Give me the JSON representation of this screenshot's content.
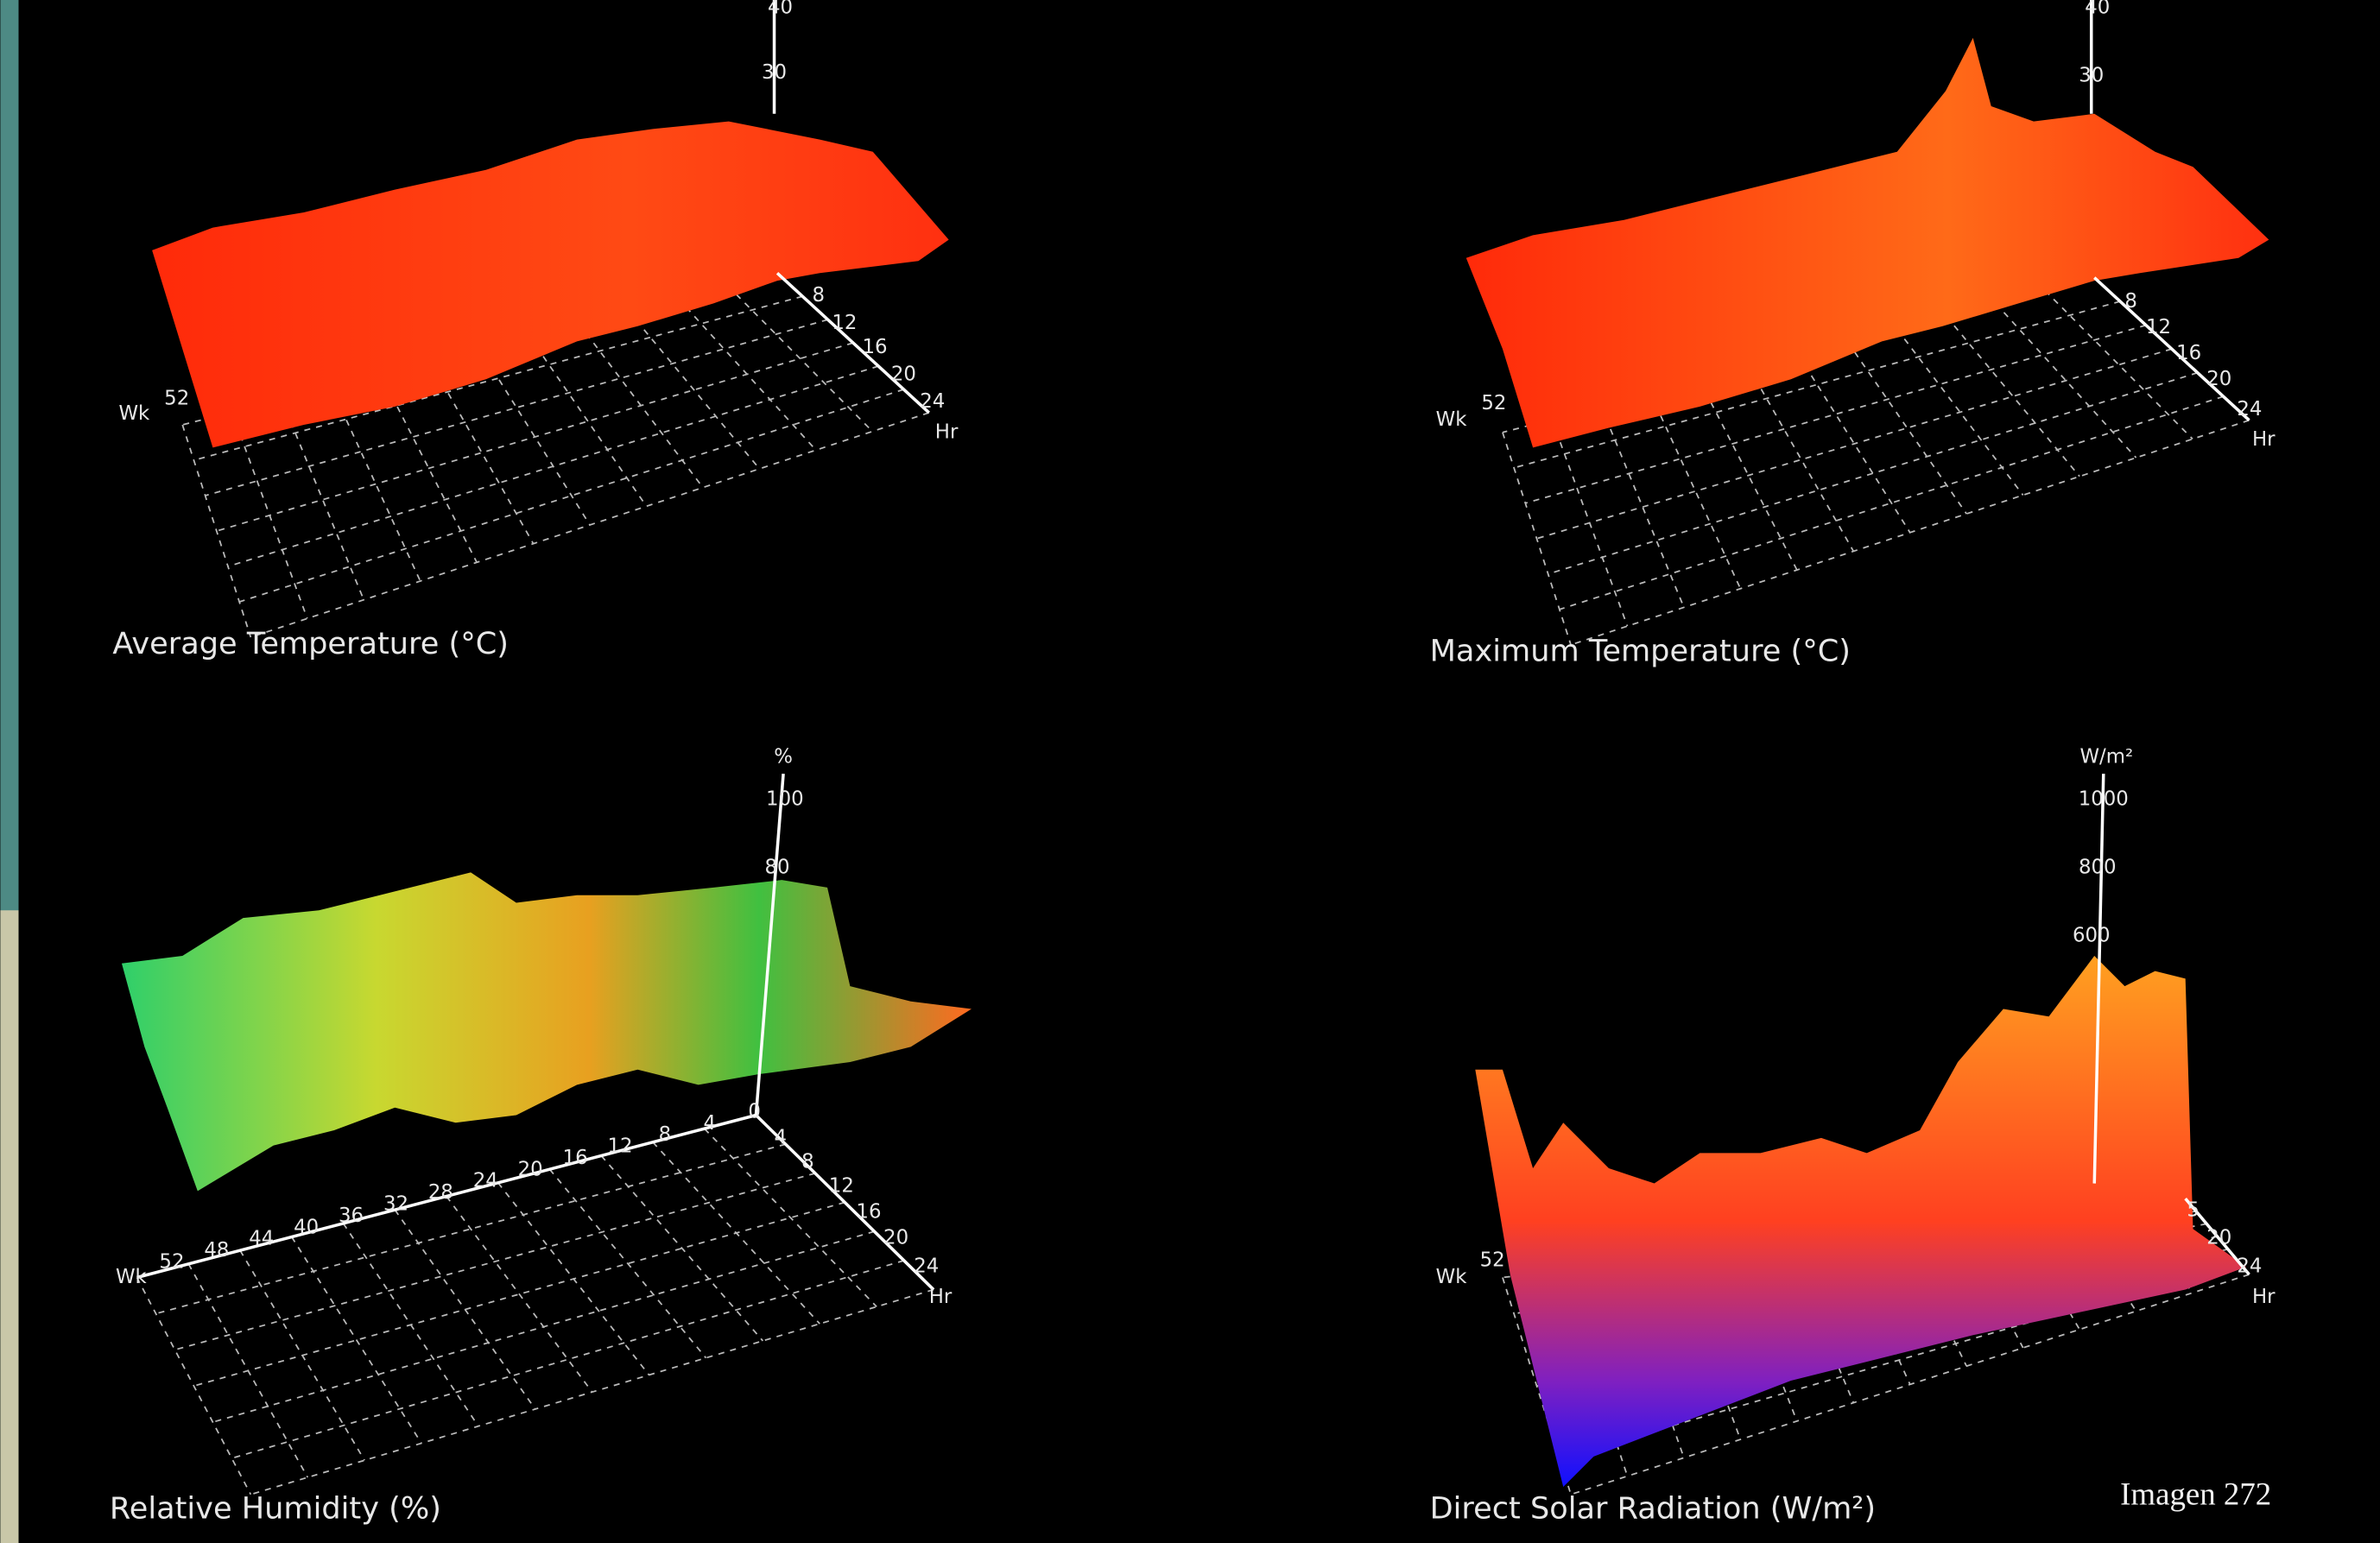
{
  "panels": [
    {
      "title": "Average Temperature (°C)",
      "z_ticks": [
        "40",
        "30"
      ],
      "hr_ticks": [
        "8",
        "12",
        "16",
        "20",
        "24"
      ],
      "hr_label": "Hr",
      "wk_label": "Wk",
      "wk_ticks": [
        "52"
      ]
    },
    {
      "title": "Maximum Temperature (°C)",
      "z_ticks": [
        "40",
        "30"
      ],
      "hr_ticks": [
        "8",
        "12",
        "16",
        "20",
        "24"
      ],
      "hr_label": "Hr",
      "wk_label": "Wk",
      "wk_ticks": [
        "52"
      ]
    },
    {
      "title": "Relative Humidity (%)",
      "z_unit": "%",
      "z_ticks": [
        "100",
        "80"
      ],
      "hr_ticks": [
        "4",
        "8",
        "12",
        "16",
        "20",
        "24"
      ],
      "hr_label": "Hr",
      "wk_label": "Wk",
      "wk_ticks": [
        "52",
        "48",
        "44",
        "40",
        "36",
        "32",
        "28",
        "24",
        "20",
        "16",
        "12",
        "8",
        "4",
        "0"
      ]
    },
    {
      "title": "Direct Solar Radiation (W/m²)",
      "z_unit": "W/m²",
      "z_ticks": [
        "1000",
        "800",
        "600"
      ],
      "hr_ticks": [
        "5",
        "20",
        "24"
      ],
      "hr_label": "Hr",
      "wk_label": "Wk",
      "wk_ticks": [
        "52"
      ]
    }
  ],
  "caption": "Imagen 272"
}
